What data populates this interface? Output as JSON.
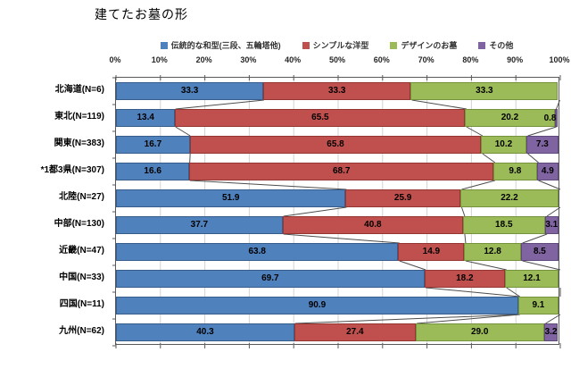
{
  "chart_data": {
    "type": "bar",
    "stacked": true,
    "orientation": "horizontal",
    "title": "建てたお墓の形",
    "grid": true,
    "legend_position": "top",
    "xlim": [
      0,
      100
    ],
    "x_ticks": [
      "0%",
      "10%",
      "20%",
      "30%",
      "40%",
      "50%",
      "60%",
      "70%",
      "80%",
      "90%",
      "100%"
    ],
    "categories": [
      "北海道(N=6)",
      "東北(N=119)",
      "関東(N=383)",
      "*1都3県(N=307)",
      "北陸(N=27)",
      "中部(N=130)",
      "近畿(N=47)",
      "中国(N=33)",
      "四国(N=11)",
      "九州(N=62)"
    ],
    "series": [
      {
        "name": "伝統的な和型(三段、五輪塔他)",
        "color": "#4F81BD",
        "border": "#385D8A",
        "values": [
          33.3,
          13.4,
          16.7,
          16.6,
          51.9,
          37.7,
          63.8,
          69.7,
          90.9,
          40.3
        ]
      },
      {
        "name": "シンプルな洋型",
        "color": "#C0504D",
        "border": "#943634",
        "values": [
          33.3,
          65.5,
          65.8,
          68.7,
          25.9,
          40.8,
          14.9,
          18.2,
          0,
          27.4
        ]
      },
      {
        "name": "デザインのお墓",
        "color": "#9BBB59",
        "border": "#76923C",
        "values": [
          33.3,
          20.2,
          10.2,
          9.8,
          22.2,
          18.5,
          12.8,
          12.1,
          9.1,
          29.0
        ]
      },
      {
        "name": "その他",
        "color": "#8064A2",
        "border": "#5F497A",
        "values": [
          0,
          0.8,
          7.3,
          4.9,
          0,
          3.1,
          8.5,
          0,
          0,
          3.2
        ]
      }
    ],
    "colors": {
      "gridline": "#D3D3D3",
      "axis_line": "#595959",
      "series_line": "#4D4D4D",
      "label_text": "#000000"
    }
  }
}
